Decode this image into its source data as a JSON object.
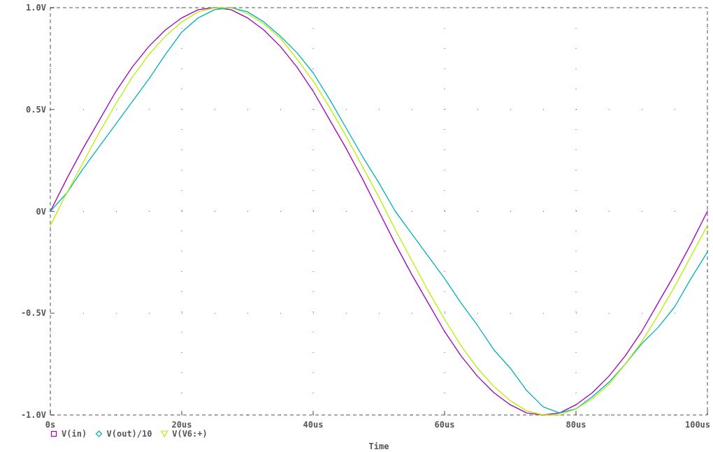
{
  "chart_data": {
    "type": "line",
    "xlabel": "Time",
    "x": [
      0,
      2.5,
      5,
      7.5,
      10,
      12.5,
      15,
      17.5,
      20,
      22.5,
      25,
      27.5,
      30,
      32.5,
      35,
      37.5,
      40,
      42.5,
      45,
      47.5,
      50,
      52.5,
      55,
      57.5,
      60,
      62.5,
      65,
      67.5,
      70,
      72.5,
      75,
      77.5,
      80,
      82.5,
      85,
      87.5,
      90,
      92.5,
      95,
      97.5,
      100
    ],
    "series": [
      {
        "name": "V(in)",
        "color": "#a000b8",
        "values": [
          0,
          0.16,
          0.31,
          0.45,
          0.59,
          0.71,
          0.81,
          0.89,
          0.95,
          0.99,
          1.0,
          0.99,
          0.95,
          0.89,
          0.81,
          0.71,
          0.59,
          0.45,
          0.31,
          0.16,
          0,
          -0.16,
          -0.31,
          -0.45,
          -0.59,
          -0.71,
          -0.81,
          -0.89,
          -0.95,
          -0.99,
          -1.0,
          -0.99,
          -0.95,
          -0.89,
          -0.81,
          -0.71,
          -0.59,
          -0.45,
          -0.31,
          -0.16,
          0
        ]
      },
      {
        "name": "V(out)/10",
        "color": "#00b0c0",
        "values": [
          0,
          0.09,
          0.21,
          0.32,
          0.43,
          0.54,
          0.65,
          0.77,
          0.88,
          0.95,
          0.99,
          1.0,
          0.98,
          0.93,
          0.86,
          0.78,
          0.68,
          0.55,
          0.41,
          0.27,
          0.14,
          0,
          -0.11,
          -0.22,
          -0.33,
          -0.45,
          -0.56,
          -0.68,
          -0.77,
          -0.88,
          -0.96,
          -0.99,
          -0.97,
          -0.91,
          -0.84,
          -0.75,
          -0.65,
          -0.57,
          -0.47,
          -0.33,
          -0.2
        ]
      },
      {
        "name": "V(V6:+)",
        "color": "#b8f000",
        "values": [
          -0.07,
          0.09,
          0.24,
          0.39,
          0.53,
          0.66,
          0.77,
          0.86,
          0.93,
          0.98,
          1.0,
          1.0,
          0.97,
          0.92,
          0.85,
          0.75,
          0.64,
          0.51,
          0.37,
          0.22,
          0.07,
          -0.09,
          -0.24,
          -0.39,
          -0.53,
          -0.66,
          -0.77,
          -0.86,
          -0.93,
          -0.98,
          -1.0,
          -1.0,
          -0.97,
          -0.92,
          -0.85,
          -0.75,
          -0.64,
          -0.51,
          -0.37,
          -0.22,
          -0.07
        ]
      }
    ],
    "xlim": [
      0,
      100
    ],
    "xticks": [
      {
        "value": 0,
        "label": "0s"
      },
      {
        "value": 20,
        "label": "20us"
      },
      {
        "value": 40,
        "label": "40us"
      },
      {
        "value": 60,
        "label": "60us"
      },
      {
        "value": 80,
        "label": "80us"
      },
      {
        "value": 100,
        "label": "100us"
      }
    ],
    "ylim": [
      -1,
      1
    ],
    "yticks": [
      {
        "value": -1,
        "label": "-1.0V"
      },
      {
        "value": -0.5,
        "label": "-0.5V"
      },
      {
        "value": 0,
        "label": "0V"
      },
      {
        "value": 0.5,
        "label": "0.5V"
      },
      {
        "value": 1,
        "label": "1.0V"
      }
    ],
    "grid": true,
    "legend": "bottom",
    "line_style": "solid"
  }
}
